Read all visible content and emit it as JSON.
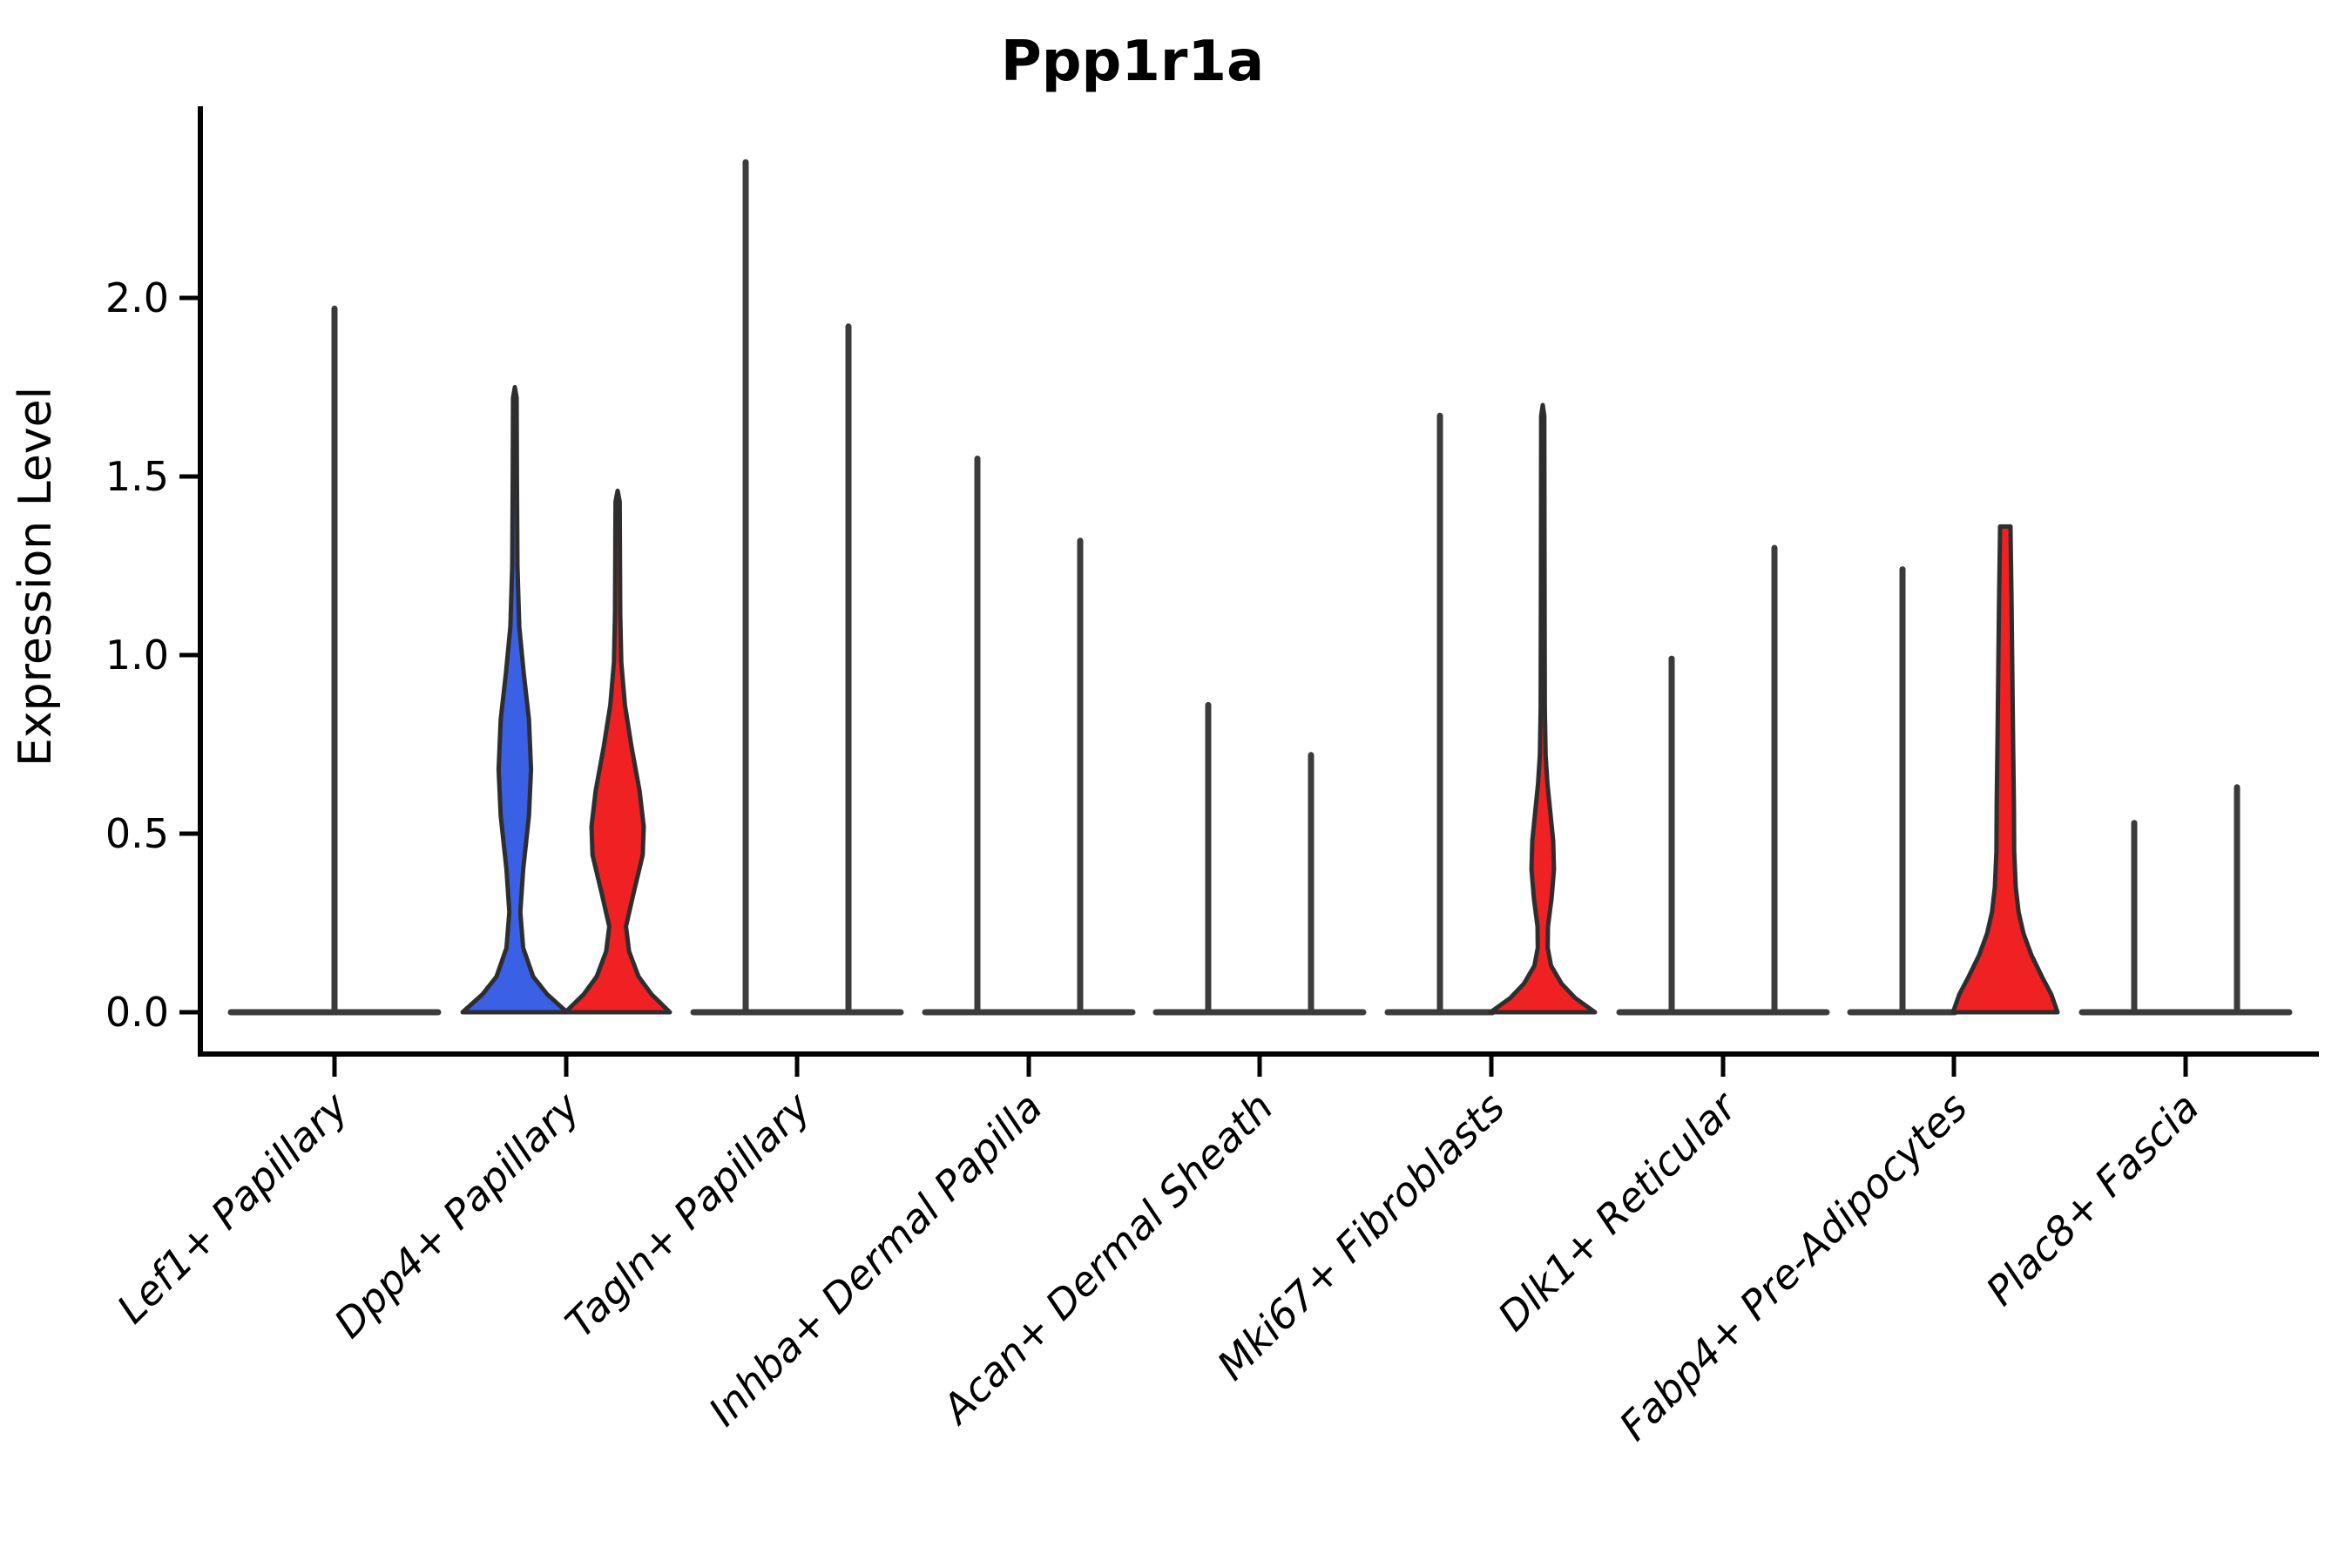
{
  "page": {
    "background": "#ffffff"
  },
  "colors": {
    "violin_blue": "#3A60E5",
    "violin_red": "#F02123",
    "violin_outline": "#2E2E2E",
    "spike_line": "#3B3B3B",
    "axis_line": "#000000"
  },
  "chart_data": {
    "type": "violin",
    "title": "Ppp1r1a",
    "ylabel": "Expression Level",
    "xlabel": "",
    "yticks": [
      0.0,
      0.5,
      1.0,
      1.5,
      2.0
    ],
    "ylim": [
      -0.12,
      2.54
    ],
    "grid": false,
    "legend": "none",
    "categories": [
      "Lef1+ Papillary",
      "Dpp4+ Papillary",
      "Tagln+ Papillary",
      "Inhba+ Dermal Papilla",
      "Acan+ Dermal Sheath",
      "Mki67+ Fibroblasts",
      "Dlk1+ Reticular",
      "Fabp4+ Pre-Adipocytes",
      "Plac8+ Fascia"
    ],
    "note": "Each category holds two dodged violins (blue = left condition, red = right condition); violins rendered as flat baseline + vertical range spike have near-zero density above 0. 'max' is the top of each violin's expression range.",
    "groups": [
      {
        "label": "Lef1+ Papillary",
        "violins": [
          {
            "position": "center",
            "fill": "none",
            "shape": "spike",
            "max": 1.97
          }
        ]
      },
      {
        "label": "Dpp4+ Papillary",
        "violins": [
          {
            "position": "left",
            "fill": "blue",
            "shape": "curve",
            "max": 1.75,
            "profile": [
              [
                0,
                1.0
              ],
              [
                0.05,
                0.62
              ],
              [
                0.1,
                0.35
              ],
              [
                0.18,
                0.16
              ],
              [
                0.28,
                0.105
              ],
              [
                0.4,
                0.16
              ],
              [
                0.55,
                0.27
              ],
              [
                0.68,
                0.31
              ],
              [
                0.82,
                0.27
              ],
              [
                0.95,
                0.17
              ],
              [
                1.08,
                0.085
              ],
              [
                1.25,
                0.05
              ],
              [
                1.5,
                0.04
              ],
              [
                1.72,
                0.035
              ],
              [
                1.75,
                0
              ]
            ]
          },
          {
            "position": "right",
            "fill": "red",
            "shape": "curve",
            "max": 1.46,
            "profile": [
              [
                0,
                1.0
              ],
              [
                0.05,
                0.65
              ],
              [
                0.1,
                0.4
              ],
              [
                0.17,
                0.22
              ],
              [
                0.24,
                0.16
              ],
              [
                0.33,
                0.3
              ],
              [
                0.44,
                0.48
              ],
              [
                0.52,
                0.5
              ],
              [
                0.62,
                0.42
              ],
              [
                0.74,
                0.27
              ],
              [
                0.86,
                0.14
              ],
              [
                0.98,
                0.07
              ],
              [
                1.12,
                0.05
              ],
              [
                1.43,
                0.04
              ],
              [
                1.46,
                0
              ]
            ]
          }
        ]
      },
      {
        "label": "Tagln+ Papillary",
        "violins": [
          {
            "position": "left",
            "fill": "none",
            "shape": "spike",
            "max": 2.38
          },
          {
            "position": "right",
            "fill": "none",
            "shape": "spike",
            "max": 1.92
          }
        ]
      },
      {
        "label": "Inhba+ Dermal Papilla",
        "violins": [
          {
            "position": "left",
            "fill": "none",
            "shape": "spike",
            "max": 1.55
          },
          {
            "position": "right",
            "fill": "none",
            "shape": "spike",
            "max": 1.32
          }
        ]
      },
      {
        "label": "Acan+ Dermal Sheath",
        "violins": [
          {
            "position": "left",
            "fill": "none",
            "shape": "spike",
            "max": 0.86
          },
          {
            "position": "right",
            "fill": "none",
            "shape": "spike",
            "max": 0.72
          }
        ]
      },
      {
        "label": "Mki67+ Fibroblasts",
        "violins": [
          {
            "position": "left",
            "fill": "none",
            "shape": "spike",
            "max": 1.67
          },
          {
            "position": "right",
            "fill": "red",
            "shape": "curve",
            "max": 1.7,
            "profile": [
              [
                0,
                1.0
              ],
              [
                0.04,
                0.62
              ],
              [
                0.08,
                0.36
              ],
              [
                0.13,
                0.16
              ],
              [
                0.18,
                0.095
              ],
              [
                0.24,
                0.1
              ],
              [
                0.32,
                0.17
              ],
              [
                0.4,
                0.215
              ],
              [
                0.48,
                0.2
              ],
              [
                0.56,
                0.145
              ],
              [
                0.64,
                0.09
              ],
              [
                0.72,
                0.055
              ],
              [
                0.85,
                0.04
              ],
              [
                1.2,
                0.035
              ],
              [
                1.67,
                0.03
              ],
              [
                1.7,
                0
              ]
            ]
          }
        ]
      },
      {
        "label": "Dlk1+ Reticular",
        "violins": [
          {
            "position": "left",
            "fill": "none",
            "shape": "spike",
            "max": 0.99
          },
          {
            "position": "right",
            "fill": "none",
            "shape": "spike",
            "max": 1.3
          }
        ]
      },
      {
        "label": "Fabp4+ Pre-Adipocytes",
        "violins": [
          {
            "position": "left",
            "fill": "none",
            "shape": "spike",
            "max": 1.24
          },
          {
            "position": "right",
            "fill": "red",
            "shape": "curve",
            "max": 1.37,
            "blunt_top": true,
            "profile": [
              [
                0,
                1.0
              ],
              [
                0.05,
                0.88
              ],
              [
                0.1,
                0.7
              ],
              [
                0.16,
                0.5
              ],
              [
                0.22,
                0.35
              ],
              [
                0.28,
                0.255
              ],
              [
                0.35,
                0.2
              ],
              [
                0.45,
                0.17
              ],
              [
                0.58,
                0.165
              ],
              [
                0.75,
                0.15
              ],
              [
                0.95,
                0.135
              ],
              [
                1.15,
                0.12
              ],
              [
                1.3,
                0.105
              ],
              [
                1.36,
                0.1
              ]
            ]
          }
        ]
      },
      {
        "label": "Plac8+ Fascia",
        "violins": [
          {
            "position": "left",
            "fill": "none",
            "shape": "spike",
            "max": 0.53
          },
          {
            "position": "right",
            "fill": "none",
            "shape": "spike",
            "max": 0.63
          }
        ]
      }
    ]
  }
}
